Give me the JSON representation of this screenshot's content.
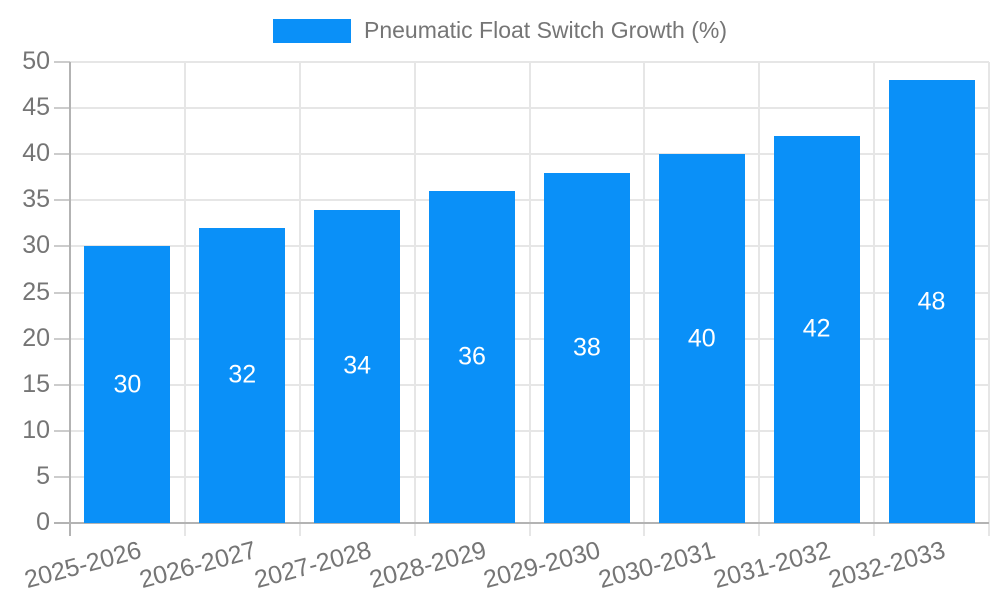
{
  "chart_data": {
    "type": "bar",
    "title": "",
    "legend_label": "Pneumatic Float Switch Growth (%)",
    "legend_position": "top",
    "categories": [
      "2025-2026",
      "2026-2027",
      "2027-2028",
      "2028-2029",
      "2029-2030",
      "2030-2031",
      "2031-2032",
      "2032-2033"
    ],
    "values": [
      30,
      32,
      34,
      36,
      38,
      40,
      42,
      48
    ],
    "value_labels": [
      "30",
      "32",
      "34",
      "36",
      "38",
      "40",
      "42",
      "48"
    ],
    "xlabel": "",
    "ylabel": "",
    "ylim": [
      0,
      50
    ],
    "yticks": [
      0,
      5,
      10,
      15,
      20,
      25,
      30,
      35,
      40,
      45,
      50
    ],
    "grid": true,
    "x_label_rotation_deg": -15,
    "colors": {
      "bar": "#0A90F8",
      "grid": "#e6e6e6",
      "axis": "#b3b3b3",
      "minor_tick": "#cccccc",
      "tick_label": "#757575",
      "value_label": "#ffffff",
      "background": "#ffffff"
    }
  }
}
